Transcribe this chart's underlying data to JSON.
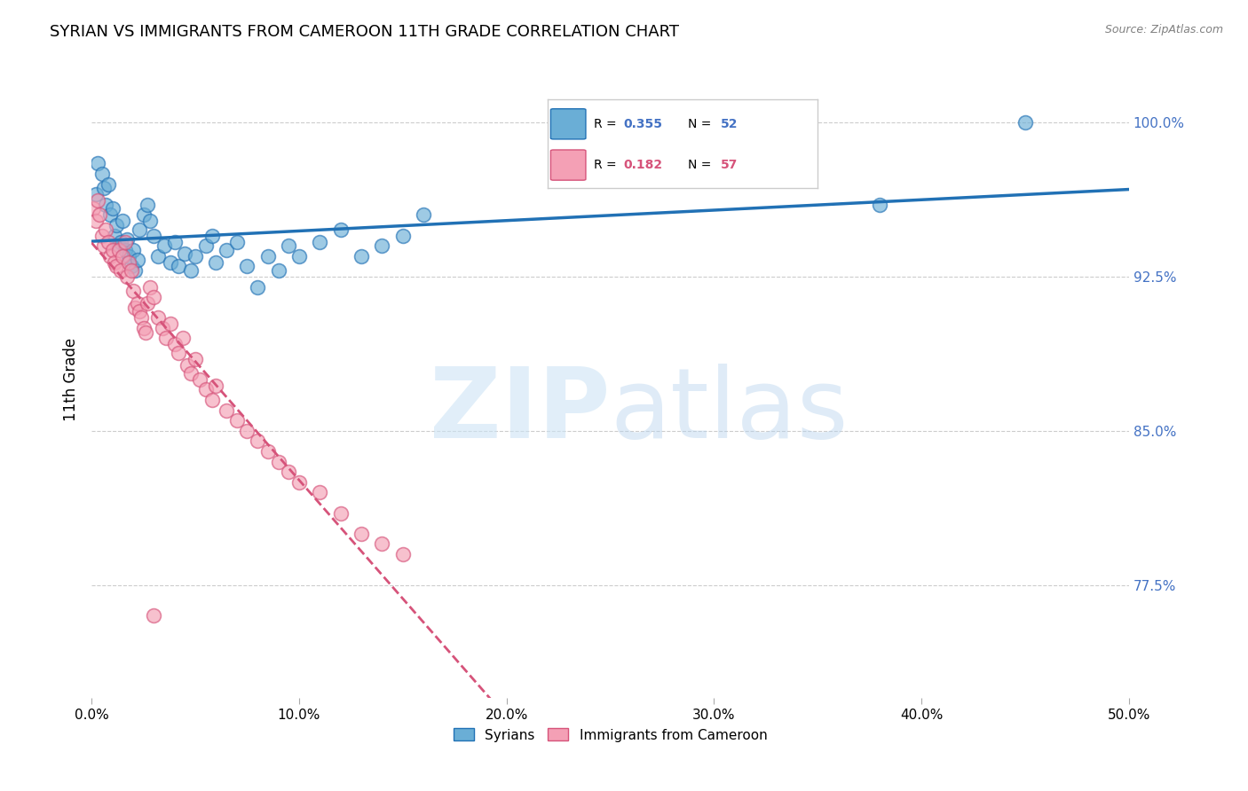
{
  "title": "SYRIAN VS IMMIGRANTS FROM CAMEROON 11TH GRADE CORRELATION CHART",
  "source": "Source: ZipAtlas.com",
  "ylabel": "11th Grade",
  "ylabel_right_labels": [
    "100.0%",
    "92.5%",
    "85.0%",
    "77.5%"
  ],
  "ylabel_right_values": [
    1.0,
    0.925,
    0.85,
    0.775
  ],
  "xlim": [
    0.0,
    0.5
  ],
  "ylim": [
    0.72,
    1.03
  ],
  "legend_blue_r": "0.355",
  "legend_blue_n": "52",
  "legend_pink_r": "0.182",
  "legend_pink_n": "57",
  "blue_color": "#6aaed6",
  "pink_color": "#f4a0b5",
  "blue_line_color": "#2171b5",
  "pink_line_color": "#d6537a",
  "blue_scatter": [
    [
      0.002,
      0.965
    ],
    [
      0.003,
      0.98
    ],
    [
      0.005,
      0.975
    ],
    [
      0.006,
      0.968
    ],
    [
      0.007,
      0.96
    ],
    [
      0.008,
      0.97
    ],
    [
      0.009,
      0.955
    ],
    [
      0.01,
      0.958
    ],
    [
      0.011,
      0.945
    ],
    [
      0.012,
      0.95
    ],
    [
      0.013,
      0.94
    ],
    [
      0.014,
      0.942
    ],
    [
      0.015,
      0.952
    ],
    [
      0.016,
      0.938
    ],
    [
      0.017,
      0.943
    ],
    [
      0.018,
      0.935
    ],
    [
      0.019,
      0.93
    ],
    [
      0.02,
      0.938
    ],
    [
      0.021,
      0.928
    ],
    [
      0.022,
      0.933
    ],
    [
      0.023,
      0.948
    ],
    [
      0.025,
      0.955
    ],
    [
      0.027,
      0.96
    ],
    [
      0.028,
      0.952
    ],
    [
      0.03,
      0.945
    ],
    [
      0.032,
      0.935
    ],
    [
      0.035,
      0.94
    ],
    [
      0.038,
      0.932
    ],
    [
      0.04,
      0.942
    ],
    [
      0.042,
      0.93
    ],
    [
      0.045,
      0.936
    ],
    [
      0.048,
      0.928
    ],
    [
      0.05,
      0.935
    ],
    [
      0.055,
      0.94
    ],
    [
      0.058,
      0.945
    ],
    [
      0.06,
      0.932
    ],
    [
      0.065,
      0.938
    ],
    [
      0.07,
      0.942
    ],
    [
      0.075,
      0.93
    ],
    [
      0.08,
      0.92
    ],
    [
      0.085,
      0.935
    ],
    [
      0.09,
      0.928
    ],
    [
      0.095,
      0.94
    ],
    [
      0.1,
      0.935
    ],
    [
      0.11,
      0.942
    ],
    [
      0.12,
      0.948
    ],
    [
      0.13,
      0.935
    ],
    [
      0.14,
      0.94
    ],
    [
      0.15,
      0.945
    ],
    [
      0.16,
      0.955
    ],
    [
      0.45,
      1.0
    ],
    [
      0.38,
      0.96
    ]
  ],
  "pink_scatter": [
    [
      0.001,
      0.958
    ],
    [
      0.002,
      0.952
    ],
    [
      0.003,
      0.962
    ],
    [
      0.004,
      0.955
    ],
    [
      0.005,
      0.945
    ],
    [
      0.006,
      0.94
    ],
    [
      0.007,
      0.948
    ],
    [
      0.008,
      0.942
    ],
    [
      0.009,
      0.935
    ],
    [
      0.01,
      0.938
    ],
    [
      0.011,
      0.932
    ],
    [
      0.012,
      0.93
    ],
    [
      0.013,
      0.938
    ],
    [
      0.014,
      0.928
    ],
    [
      0.015,
      0.935
    ],
    [
      0.016,
      0.942
    ],
    [
      0.017,
      0.925
    ],
    [
      0.018,
      0.932
    ],
    [
      0.019,
      0.928
    ],
    [
      0.02,
      0.918
    ],
    [
      0.021,
      0.91
    ],
    [
      0.022,
      0.912
    ],
    [
      0.023,
      0.908
    ],
    [
      0.024,
      0.905
    ],
    [
      0.025,
      0.9
    ],
    [
      0.026,
      0.898
    ],
    [
      0.027,
      0.912
    ],
    [
      0.028,
      0.92
    ],
    [
      0.03,
      0.915
    ],
    [
      0.032,
      0.905
    ],
    [
      0.034,
      0.9
    ],
    [
      0.036,
      0.895
    ],
    [
      0.038,
      0.902
    ],
    [
      0.04,
      0.892
    ],
    [
      0.042,
      0.888
    ],
    [
      0.044,
      0.895
    ],
    [
      0.046,
      0.882
    ],
    [
      0.048,
      0.878
    ],
    [
      0.05,
      0.885
    ],
    [
      0.052,
      0.875
    ],
    [
      0.055,
      0.87
    ],
    [
      0.058,
      0.865
    ],
    [
      0.06,
      0.872
    ],
    [
      0.065,
      0.86
    ],
    [
      0.07,
      0.855
    ],
    [
      0.075,
      0.85
    ],
    [
      0.08,
      0.845
    ],
    [
      0.085,
      0.84
    ],
    [
      0.09,
      0.835
    ],
    [
      0.095,
      0.83
    ],
    [
      0.1,
      0.825
    ],
    [
      0.11,
      0.82
    ],
    [
      0.12,
      0.81
    ],
    [
      0.13,
      0.8
    ],
    [
      0.14,
      0.795
    ],
    [
      0.15,
      0.79
    ],
    [
      0.03,
      0.76
    ]
  ]
}
